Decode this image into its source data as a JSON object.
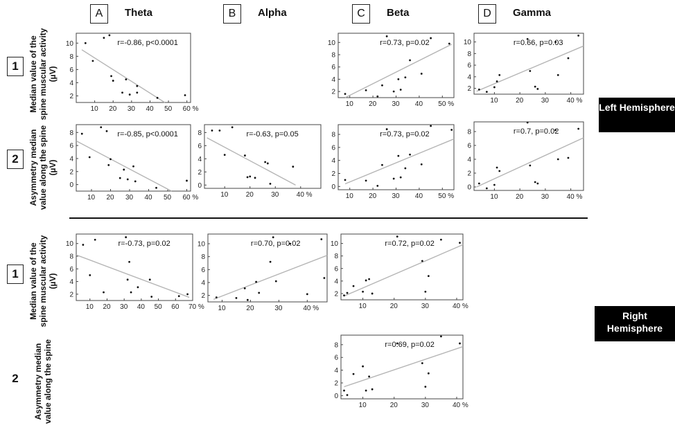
{
  "columns": [
    {
      "letter": "A",
      "name": "Theta"
    },
    {
      "letter": "B",
      "name": "Alpha"
    },
    {
      "letter": "C",
      "name": "Beta"
    },
    {
      "letter": "D",
      "name": "Gamma"
    }
  ],
  "row_numbers": [
    "1",
    "2",
    "1",
    "2"
  ],
  "row_labels": [
    "Median value of the spine muscular activity (µV)",
    "Asymmetry median value along the spine (µV)",
    "Median value of the spine muscular activity (µV)",
    "Asymmetry median value along the spine"
  ],
  "hemispheres": {
    "left": "Left Hemisphere",
    "right": "Right Hemisphere"
  },
  "chart_data": [
    {
      "id": "L1A",
      "type": "scatter",
      "annotation": "r=-0.86, p<0.0001",
      "xlim": [
        0,
        62
      ],
      "ylim": [
        1,
        11.5
      ],
      "xticks": [
        "10",
        "20",
        "30",
        "40",
        "50",
        "60 %"
      ],
      "yticks": [
        "2",
        "4",
        "6",
        "8",
        "10"
      ],
      "x": [
        5,
        9,
        15,
        18,
        19,
        20,
        25,
        27,
        29,
        33,
        33,
        44,
        59
      ],
      "y": [
        10,
        7.3,
        10.8,
        11.2,
        5,
        4.3,
        2.5,
        4.5,
        2.2,
        3.5,
        2.5,
        1.7,
        2.1
      ],
      "fit": [
        [
          3,
          9
        ],
        [
          48,
          1
        ]
      ]
    },
    {
      "id": "L1C",
      "type": "scatter",
      "annotation": "r=0.73, p=0.02",
      "xlim": [
        5,
        55
      ],
      "ylim": [
        1,
        11.5
      ],
      "xticks": [
        "10",
        "20",
        "30",
        "40",
        "50 %"
      ],
      "yticks": [
        "2",
        "4",
        "6",
        "8",
        "10"
      ],
      "x": [
        8,
        17,
        22,
        24,
        26,
        29,
        31,
        32,
        34,
        36,
        41,
        45,
        53
      ],
      "y": [
        1.6,
        2.2,
        1.2,
        3,
        11,
        2,
        4,
        2.3,
        4.3,
        7.1,
        4.9,
        10.7,
        9.8
      ],
      "fit": [
        [
          8,
          1
        ],
        [
          54,
          9.7
        ]
      ]
    },
    {
      "id": "L1D",
      "type": "scatter",
      "annotation": "r=0.66, p=0.03",
      "xlim": [
        2,
        45
      ],
      "ylim": [
        1,
        11.5
      ],
      "xticks": [
        "10",
        "20",
        "30",
        "40 %"
      ],
      "yticks": [
        "2",
        "4",
        "6",
        "8",
        "10"
      ],
      "x": [
        4,
        7,
        10,
        11,
        12,
        23,
        24,
        26,
        27,
        34,
        35,
        39,
        43
      ],
      "y": [
        1.8,
        1.4,
        2.2,
        3.2,
        4.3,
        10.5,
        5,
        2.3,
        1.9,
        10,
        4.3,
        7.2,
        11.1
      ],
      "fit": [
        [
          3,
          1.5
        ],
        [
          45,
          9.3
        ]
      ]
    },
    {
      "id": "L2A",
      "type": "scatter",
      "annotation": "r=-0.85, p<0.0001",
      "xlim": [
        2,
        62
      ],
      "ylim": [
        -1,
        9.2
      ],
      "xticks": [
        "10",
        "20",
        "30",
        "40",
        "50",
        "60 %"
      ],
      "yticks": [
        "0",
        "2",
        "4",
        "6",
        "8"
      ],
      "x": [
        5,
        9,
        15,
        18,
        19,
        20,
        25,
        27,
        29,
        32,
        33,
        44,
        60
      ],
      "y": [
        7.8,
        4.2,
        8.8,
        8.2,
        3,
        3.9,
        1,
        2.3,
        0.8,
        2.8,
        0.5,
        -0.5,
        0.6
      ],
      "fit": [
        [
          2,
          6.7
        ],
        [
          52,
          -1
        ]
      ]
    },
    {
      "id": "L2B",
      "type": "scatter",
      "annotation": "r=-0.63, p=0.05",
      "xlim": [
        2,
        48
      ],
      "ylim": [
        -0.5,
        9.2
      ],
      "xticks": [
        "10",
        "20",
        "30",
        "40 %"
      ],
      "yticks": [
        "0",
        "2",
        "4",
        "6",
        "8"
      ],
      "x": [
        5,
        8,
        10,
        13,
        18,
        19,
        20,
        22,
        26,
        27,
        28,
        37
      ],
      "y": [
        8.3,
        8.3,
        4.6,
        8.8,
        4.5,
        1.2,
        1.3,
        1.1,
        3.5,
        3.3,
        0.2,
        2.8
      ],
      "fit": [
        [
          3,
          7.2
        ],
        [
          38,
          0
        ]
      ]
    },
    {
      "id": "L2C",
      "type": "scatter",
      "annotation": "r=0.73, p=0.02",
      "xlim": [
        5,
        55
      ],
      "ylim": [
        -0.5,
        9.5
      ],
      "xticks": [
        "10",
        "20",
        "30",
        "40",
        "50 %"
      ],
      "yticks": [
        "0",
        "2",
        "4",
        "6",
        "8"
      ],
      "x": [
        8,
        17,
        22,
        24,
        26,
        29,
        31,
        32,
        34,
        36,
        41,
        45,
        54
      ],
      "y": [
        1,
        0.9,
        0.1,
        3.3,
        8.8,
        1.2,
        4.7,
        1.4,
        2.8,
        4.9,
        3.4,
        9.3,
        8.7
      ],
      "fit": [
        [
          8,
          0.4
        ],
        [
          55,
          7.3
        ]
      ]
    },
    {
      "id": "L2D",
      "type": "scatter",
      "annotation": "r=0.7, p=0.02",
      "xlim": [
        2,
        45
      ],
      "ylim": [
        -0.5,
        9.4
      ],
      "xticks": [
        "10",
        "20",
        "30",
        "40 %"
      ],
      "yticks": [
        "0",
        "2",
        "4",
        "6",
        "8"
      ],
      "x": [
        4,
        7,
        10,
        11,
        12,
        23,
        24,
        26,
        27,
        34,
        35,
        39,
        43
      ],
      "y": [
        0.5,
        -0.2,
        0.3,
        2.8,
        2.3,
        9.3,
        3.1,
        0.7,
        0.5,
        8.2,
        4,
        4.2,
        8.4
      ],
      "fit": [
        [
          3,
          0
        ],
        [
          45,
          7.1
        ]
      ]
    },
    {
      "id": "R1A",
      "type": "scatter",
      "annotation": "r=-0.73, p=0.02",
      "xlim": [
        2,
        70
      ],
      "ylim": [
        1,
        11.5
      ],
      "xticks": [
        "10",
        "20",
        "30",
        "40",
        "50",
        "60",
        "70 %"
      ],
      "yticks": [
        "2",
        "4",
        "6",
        "8",
        "10"
      ],
      "x": [
        6,
        10,
        13,
        18,
        31,
        32,
        33,
        34,
        38,
        45,
        46,
        62,
        67
      ],
      "y": [
        9.8,
        5,
        10.6,
        2.3,
        11,
        4.3,
        7.1,
        2.3,
        3.1,
        4.3,
        1.6,
        1.7,
        2
      ],
      "fit": [
        [
          2,
          8.2
        ],
        [
          68,
          1.5
        ]
      ]
    },
    {
      "id": "R1B",
      "type": "scatter",
      "annotation": "r=0.70, p=0.02",
      "xlim": [
        5,
        47
      ],
      "ylim": [
        1,
        11.5
      ],
      "xticks": [
        "10",
        "20",
        "30",
        "40 %"
      ],
      "yticks": [
        "2",
        "4",
        "6",
        "8",
        "10"
      ],
      "x": [
        8,
        15,
        18,
        19,
        22,
        23,
        27,
        28,
        29,
        34,
        40,
        45,
        46
      ],
      "y": [
        1.7,
        1.6,
        3.1,
        1.3,
        4.1,
        2.4,
        7.2,
        11,
        4.2,
        10,
        2.2,
        10.7,
        4.7
      ],
      "fit": [
        [
          7,
          1.4
        ],
        [
          47,
          8.2
        ]
      ]
    },
    {
      "id": "R1C",
      "type": "scatter",
      "annotation": "r=0.72, p=0.02",
      "xlim": [
        3,
        42
      ],
      "ylim": [
        1,
        11.5
      ],
      "xticks": [
        "10",
        "20",
        "30",
        "40 %"
      ],
      "yticks": [
        "2",
        "4",
        "6",
        "8",
        "10"
      ],
      "x": [
        4,
        5,
        7,
        10,
        11,
        12,
        13,
        21,
        29,
        30,
        31,
        35,
        41
      ],
      "y": [
        1.7,
        2.1,
        3.2,
        2.3,
        4.1,
        4.3,
        2,
        11.1,
        7.2,
        2.3,
        4.8,
        10.6,
        10.1
      ],
      "fit": [
        [
          4,
          1.6
        ],
        [
          42,
          9.8
        ]
      ]
    },
    {
      "id": "R2C",
      "type": "scatter",
      "annotation": "r=0.69, p=0.02",
      "xlim": [
        3,
        42
      ],
      "ylim": [
        -0.5,
        9.5
      ],
      "xticks": [
        "10",
        "20",
        "30",
        "40 %"
      ],
      "yticks": [
        "0",
        "2",
        "4",
        "6",
        "8"
      ],
      "x": [
        4,
        5,
        7,
        10,
        11,
        12,
        13,
        21,
        29,
        30,
        31,
        35,
        41
      ],
      "y": [
        0.8,
        0.1,
        3.4,
        4.6,
        0.8,
        3,
        1,
        8.2,
        5.1,
        1.4,
        3.5,
        9.3,
        8.2
      ],
      "fit": [
        [
          4,
          1.4
        ],
        [
          42,
          7.7
        ]
      ]
    }
  ]
}
